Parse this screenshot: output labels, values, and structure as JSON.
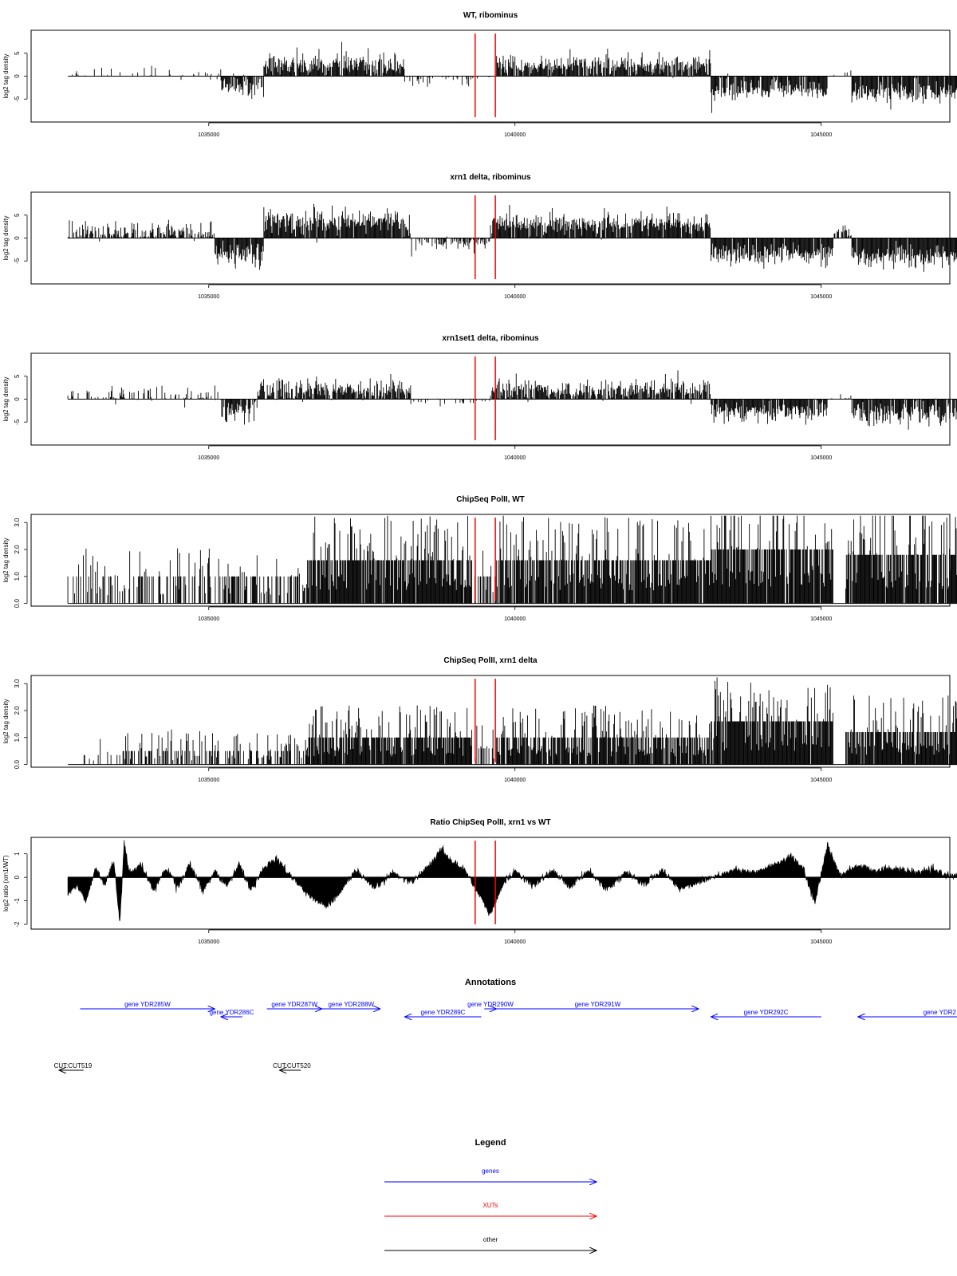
{
  "figure": {
    "annotations_title": "Annotations",
    "legend_title": "Legend"
  },
  "markers": [
    1039350,
    1039680
  ],
  "x_axis": {
    "range": [
      1032100,
      1047100
    ],
    "ticks": [
      1035000,
      1040000,
      1045000
    ],
    "tick_labels": [
      "1035000",
      "1040000",
      "1045000"
    ]
  },
  "chart_data": [
    {
      "type": "bar",
      "title": "WT, ribominus",
      "ylabel": "log2 tag density",
      "ylim": [
        -10,
        10
      ],
      "yticks": [
        -5,
        0,
        5
      ],
      "x_range": [
        1032700,
        1047300
      ],
      "segments": [
        {
          "start": 1032700,
          "end": 1035200,
          "mean": 0.5,
          "sd": 1.2,
          "p": 0.22
        },
        {
          "start": 1035200,
          "end": 1035900,
          "mean": -2.5,
          "sd": 1.3,
          "p": 0.8
        },
        {
          "start": 1035900,
          "end": 1038200,
          "mean": 2.5,
          "sd": 1.3,
          "p": 0.95
        },
        {
          "start": 1038200,
          "end": 1039300,
          "mean": -0.8,
          "sd": 0.8,
          "p": 0.3
        },
        {
          "start": 1039300,
          "end": 1039700,
          "mean": -0.5,
          "sd": 0.5,
          "p": 0.15
        },
        {
          "start": 1039700,
          "end": 1043200,
          "mean": 2.3,
          "sd": 1.2,
          "p": 0.95
        },
        {
          "start": 1043200,
          "end": 1045100,
          "mean": -3.2,
          "sd": 1.2,
          "p": 0.95
        },
        {
          "start": 1045100,
          "end": 1045500,
          "mean": 0.6,
          "sd": 0.8,
          "p": 0.2
        },
        {
          "start": 1045500,
          "end": 1047300,
          "mean": -3.5,
          "sd": 1.3,
          "p": 0.95
        }
      ]
    },
    {
      "type": "bar",
      "title": "xrn1 delta, ribominus",
      "ylabel": "log2 tag density",
      "ylim": [
        -10,
        10
      ],
      "yticks": [
        -5,
        0,
        5
      ],
      "x_range": [
        1032700,
        1047300
      ],
      "segments": [
        {
          "start": 1032700,
          "end": 1035100,
          "mean": 1.2,
          "sd": 1.3,
          "p": 0.75
        },
        {
          "start": 1035100,
          "end": 1035900,
          "mean": -3.5,
          "sd": 1.3,
          "p": 0.95
        },
        {
          "start": 1035900,
          "end": 1038300,
          "mean": 3.5,
          "sd": 1.5,
          "p": 0.97
        },
        {
          "start": 1038300,
          "end": 1039600,
          "mean": -1.0,
          "sd": 0.8,
          "p": 0.7
        },
        {
          "start": 1039600,
          "end": 1043200,
          "mean": 3.0,
          "sd": 1.3,
          "p": 0.97
        },
        {
          "start": 1043200,
          "end": 1045200,
          "mean": -3.5,
          "sd": 1.2,
          "p": 0.97
        },
        {
          "start": 1045200,
          "end": 1045500,
          "mean": 1.0,
          "sd": 1.0,
          "p": 0.4
        },
        {
          "start": 1045500,
          "end": 1047300,
          "mean": -4.0,
          "sd": 1.3,
          "p": 0.97
        }
      ]
    },
    {
      "type": "bar",
      "title": "xrn1set1 delta, ribominus",
      "ylabel": "log2 tag density",
      "ylim": [
        -10,
        10
      ],
      "yticks": [
        -5,
        0,
        5
      ],
      "x_range": [
        1032700,
        1047300
      ],
      "segments": [
        {
          "start": 1032700,
          "end": 1035200,
          "mean": 0.8,
          "sd": 1.0,
          "p": 0.35
        },
        {
          "start": 1035200,
          "end": 1035800,
          "mean": -2.5,
          "sd": 1.3,
          "p": 0.85
        },
        {
          "start": 1035800,
          "end": 1038300,
          "mean": 2.2,
          "sd": 1.3,
          "p": 0.9
        },
        {
          "start": 1038300,
          "end": 1039600,
          "mean": -0.6,
          "sd": 0.5,
          "p": 0.25
        },
        {
          "start": 1039600,
          "end": 1043200,
          "mean": 2.0,
          "sd": 1.2,
          "p": 0.9
        },
        {
          "start": 1043200,
          "end": 1045100,
          "mean": -2.8,
          "sd": 1.2,
          "p": 0.9
        },
        {
          "start": 1045100,
          "end": 1045500,
          "mean": 0.5,
          "sd": 0.5,
          "p": 0.2
        },
        {
          "start": 1045500,
          "end": 1047300,
          "mean": -3.2,
          "sd": 1.4,
          "p": 0.9
        }
      ]
    },
    {
      "type": "bar",
      "title": "ChipSeq PolII, WT",
      "ylabel": "log2 tag density",
      "ylim": [
        -0.1,
        3.3
      ],
      "yticks": [
        0.0,
        1.0,
        2.0,
        3.0
      ],
      "ytick_labels": [
        "0.0",
        "1.0",
        "2.0",
        "3.0"
      ],
      "x_range": [
        1032700,
        1047300
      ],
      "segments": [
        {
          "start": 1032700,
          "end": 1033600,
          "level": 1.0,
          "p": 0.35
        },
        {
          "start": 1033600,
          "end": 1036600,
          "level": 1.0,
          "p": 0.45
        },
        {
          "start": 1036600,
          "end": 1039300,
          "level": 1.6,
          "p": 0.95
        },
        {
          "start": 1039300,
          "end": 1039700,
          "level": 1.0,
          "p": 0.5
        },
        {
          "start": 1039700,
          "end": 1043200,
          "level": 1.6,
          "p": 0.9
        },
        {
          "start": 1043200,
          "end": 1045200,
          "level": 2.0,
          "p": 0.95
        },
        {
          "start": 1045200,
          "end": 1045400,
          "level": 0.0,
          "p": 0.0
        },
        {
          "start": 1045400,
          "end": 1047300,
          "level": 1.8,
          "p": 0.95
        }
      ]
    },
    {
      "type": "bar",
      "title": "ChipSeq PolII, xrn1 delta",
      "ylabel": "log2 tag density",
      "ylim": [
        -0.1,
        3.3
      ],
      "yticks": [
        0.0,
        1.0,
        2.0,
        3.0
      ],
      "ytick_labels": [
        "0.0",
        "1.0",
        "2.0",
        "3.0"
      ],
      "x_range": [
        1032700,
        1047300
      ],
      "segments": [
        {
          "start": 1032700,
          "end": 1033600,
          "level": 0.35,
          "p": 0.15
        },
        {
          "start": 1033600,
          "end": 1036600,
          "level": 0.5,
          "p": 0.5
        },
        {
          "start": 1036600,
          "end": 1039300,
          "level": 1.0,
          "p": 0.95
        },
        {
          "start": 1039300,
          "end": 1039700,
          "level": 0.6,
          "p": 0.4
        },
        {
          "start": 1039700,
          "end": 1043200,
          "level": 1.0,
          "p": 0.9
        },
        {
          "start": 1043200,
          "end": 1045200,
          "level": 1.6,
          "p": 0.98
        },
        {
          "start": 1045200,
          "end": 1045400,
          "level": 0.0,
          "p": 0.0
        },
        {
          "start": 1045400,
          "end": 1047300,
          "level": 1.2,
          "p": 0.95
        }
      ]
    },
    {
      "type": "area",
      "title": "Ratio ChipSeq PolII, xrn1 vs WT",
      "ylabel": "log2 ratio (xrn1/WT)",
      "ylim": [
        -2.2,
        1.7
      ],
      "yticks": [
        -2,
        -1,
        0,
        1
      ],
      "x_range": [
        1032700,
        1047300
      ],
      "keypoints": [
        [
          1032700,
          -0.7
        ],
        [
          1032850,
          -0.3
        ],
        [
          1033000,
          -1.0
        ],
        [
          1033150,
          0.4
        ],
        [
          1033300,
          -0.3
        ],
        [
          1033450,
          0.7
        ],
        [
          1033550,
          -2.0
        ],
        [
          1033620,
          1.5
        ],
        [
          1033700,
          0.2
        ],
        [
          1033900,
          0.5
        ],
        [
          1034100,
          -0.6
        ],
        [
          1034300,
          0.4
        ],
        [
          1034500,
          -0.4
        ],
        [
          1034700,
          0.6
        ],
        [
          1034900,
          -0.6
        ],
        [
          1035100,
          0.3
        ],
        [
          1035300,
          -0.4
        ],
        [
          1035500,
          0.6
        ],
        [
          1035700,
          -0.6
        ],
        [
          1035900,
          0.4
        ],
        [
          1036100,
          0.8
        ],
        [
          1036300,
          0.2
        ],
        [
          1036500,
          -0.4
        ],
        [
          1036750,
          -1.0
        ],
        [
          1036950,
          -1.2
        ],
        [
          1037150,
          -0.6
        ],
        [
          1037400,
          0.3
        ],
        [
          1037700,
          -0.5
        ],
        [
          1038000,
          0.2
        ],
        [
          1038300,
          -0.2
        ],
        [
          1038600,
          0.5
        ],
        [
          1038800,
          1.2
        ],
        [
          1039000,
          0.6
        ],
        [
          1039200,
          0.3
        ],
        [
          1039400,
          -0.7
        ],
        [
          1039600,
          -1.6
        ],
        [
          1039800,
          -0.3
        ],
        [
          1040000,
          0.3
        ],
        [
          1040300,
          -0.4
        ],
        [
          1040600,
          0.3
        ],
        [
          1040900,
          -0.4
        ],
        [
          1041200,
          0.3
        ],
        [
          1041500,
          -0.5
        ],
        [
          1041800,
          0.2
        ],
        [
          1042100,
          -0.3
        ],
        [
          1042400,
          0.3
        ],
        [
          1042700,
          -0.5
        ],
        [
          1043000,
          -0.2
        ],
        [
          1043300,
          0.1
        ],
        [
          1043600,
          0.3
        ],
        [
          1043900,
          0.2
        ],
        [
          1044200,
          0.5
        ],
        [
          1044500,
          0.9
        ],
        [
          1044700,
          0.4
        ],
        [
          1044900,
          -1.1
        ],
        [
          1045100,
          1.4
        ],
        [
          1045300,
          0.1
        ],
        [
          1045600,
          0.5
        ],
        [
          1045900,
          0.3
        ],
        [
          1046200,
          0.4
        ],
        [
          1046500,
          0.2
        ],
        [
          1046800,
          0.3
        ],
        [
          1047100,
          0.1
        ],
        [
          1047300,
          0.0
        ]
      ]
    }
  ],
  "annotations": {
    "genes": [
      {
        "label": "gene YDR285W",
        "start": 1032900,
        "end": 1035100,
        "strand": "+",
        "row": 0
      },
      {
        "label": "gene YDR286C",
        "start": 1035200,
        "end": 1035550,
        "strand": "-",
        "row": 1
      },
      {
        "label": "gene YDR287W",
        "start": 1035950,
        "end": 1036850,
        "strand": "+",
        "row": 0
      },
      {
        "label": "gene YDR288W",
        "start": 1036850,
        "end": 1037800,
        "strand": "+",
        "row": 0
      },
      {
        "label": "gene YDR289C",
        "start": 1038200,
        "end": 1039450,
        "strand": "-",
        "row": 1
      },
      {
        "label": "gene YDR290W",
        "start": 1039500,
        "end": 1039700,
        "strand": "+",
        "row": 0
      },
      {
        "label": "gene YDR291W",
        "start": 1039700,
        "end": 1043000,
        "strand": "+",
        "row": 0
      },
      {
        "label": "gene YDR292C",
        "start": 1043200,
        "end": 1045000,
        "strand": "-",
        "row": 1
      },
      {
        "label": "gene YDR2",
        "start": 1045600,
        "end": 1047800,
        "strand": "-",
        "row": 1
      }
    ],
    "other": [
      {
        "label": "CUT:CUT519",
        "start": 1032400,
        "end": 1032800,
        "strand": "-"
      },
      {
        "label": "CUT:CUT520",
        "start": 1036000,
        "end": 1036350,
        "strand": "-"
      }
    ]
  },
  "legend": [
    {
      "label": "genes",
      "color": "#0000ff"
    },
    {
      "label": "XUTs",
      "color": "#ff0000"
    },
    {
      "label": "other",
      "color": "#000000"
    }
  ],
  "colors": {
    "marker": "#ff0000",
    "gene": "#0000ff",
    "other": "#000000",
    "xut": "#ff0000"
  }
}
